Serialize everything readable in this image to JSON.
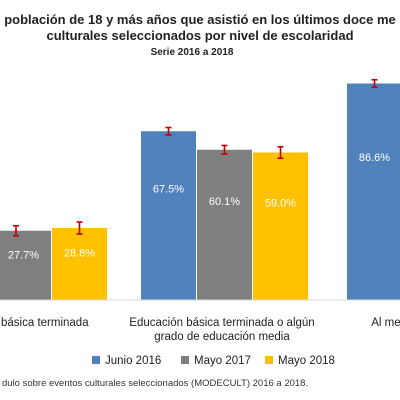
{
  "chart_data": {
    "type": "bar",
    "title_lines": [
      "población de 18 y más años que asistió en los últimos doce me",
      "culturales seleccionados por nivel de escolaridad"
    ],
    "subtitle": "Serie 2016 a 2018",
    "categories": [
      "n básica terminada",
      "Educación básica terminada o algún grado de educación media",
      "Al menos u"
    ],
    "category_label_lines": [
      [
        "n básica terminada"
      ],
      [
        "Educación básica terminada o algún",
        "grado de educación media"
      ],
      [
        "Al menos u"
      ]
    ],
    "series": [
      {
        "name": "Junio 2016",
        "color": "#4f81bd",
        "values": [
          null,
          67.5,
          86.6
        ],
        "labels": [
          "",
          "67.5%",
          "86.6%"
        ],
        "error": [
          null,
          1.5,
          1.5
        ]
      },
      {
        "name": "Mayo 2017",
        "color": "#7f7f7f",
        "values": [
          27.7,
          60.1,
          null
        ],
        "labels": [
          "27.7%",
          "60.1%",
          ""
        ],
        "error": [
          null,
          1.7,
          null
        ]
      },
      {
        "name": "Mayo 2018",
        "color": "#ffc000",
        "values": [
          28.8,
          59.0,
          null
        ],
        "labels": [
          "28.8%",
          "59.0%",
          ""
        ],
        "error": [
          2.4,
          2.3,
          null
        ]
      }
    ],
    "partial_bar": {
      "category_index": 0,
      "value": 27.7,
      "error": 2.0
    },
    "error_bar_color": "#c00000",
    "ylim": [
      0,
      100
    ],
    "grid": false,
    "legend_position": "bottom",
    "footnote": "dulo sobre eventos culturales seleccionados (MODECULT) 2016 a 2018."
  }
}
